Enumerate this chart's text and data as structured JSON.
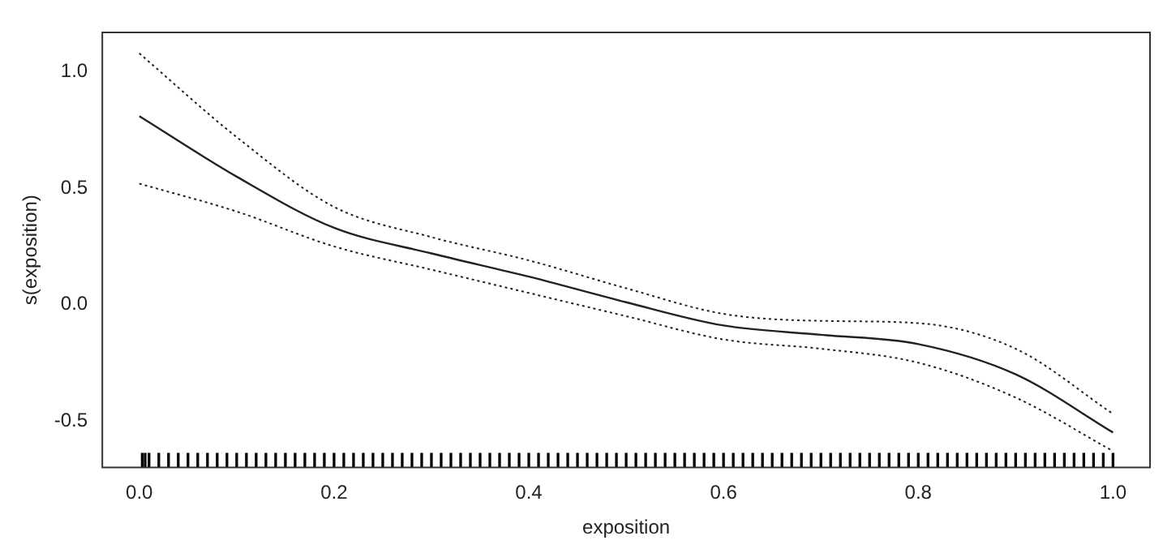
{
  "chart_data": {
    "type": "line",
    "xlabel": "exposition",
    "ylabel": "s(exposition)",
    "xlim": [
      -0.038,
      1.038
    ],
    "ylim": [
      -0.7,
      1.17
    ],
    "xticks": [
      {
        "value": 0,
        "label": "0.0"
      },
      0.2,
      0.4,
      0.6,
      0.8,
      {
        "value": 1,
        "label": "1.0"
      }
    ],
    "yticks": [
      -0.5,
      {
        "value": 0,
        "label": "0.0"
      },
      0.5,
      {
        "value": 1,
        "label": "1.0"
      }
    ],
    "grid": false,
    "legend": false,
    "marker": "none",
    "series": [
      {
        "color": "#222222",
        "line_style": "solid",
        "x": [
          0,
          0.1,
          0.2,
          0.3,
          0.4,
          0.5,
          0.6,
          0.7,
          0.8,
          0.9,
          1.0
        ],
        "values": [
          0.81,
          0.55,
          0.33,
          0.22,
          0.12,
          0.01,
          -0.09,
          -0.13,
          -0.17,
          -0.3,
          -0.55
        ]
      },
      {
        "color": "#222222",
        "line_style": "dotted",
        "x": [
          0,
          0.1,
          0.2,
          0.3,
          0.4,
          0.5,
          0.6,
          0.7,
          0.8,
          0.9,
          1.0
        ],
        "values": [
          0.52,
          0.4,
          0.25,
          0.15,
          0.05,
          -0.05,
          -0.15,
          -0.19,
          -0.25,
          -0.4,
          -0.63
        ]
      },
      {
        "color": "#222222",
        "line_style": "dotted",
        "x": [
          0,
          0.1,
          0.2,
          0.3,
          0.4,
          0.5,
          0.6,
          0.7,
          0.8,
          0.9,
          1.0
        ],
        "values": [
          1.08,
          0.72,
          0.42,
          0.29,
          0.19,
          0.07,
          -0.04,
          -0.07,
          -0.08,
          -0.19,
          -0.47
        ]
      },
      {
        "type": "bar",
        "color": "#000000",
        "x": [
          0.003,
          0.006,
          0.01,
          0.02,
          0.03,
          0.04,
          0.05,
          0.06,
          0.07,
          0.08,
          0.09,
          0.1,
          0.11,
          0.12,
          0.13,
          0.14,
          0.15,
          0.16,
          0.17,
          0.18,
          0.19,
          0.2,
          0.21,
          0.22,
          0.23,
          0.24,
          0.25,
          0.26,
          0.27,
          0.28,
          0.29,
          0.3,
          0.31,
          0.32,
          0.33,
          0.34,
          0.35,
          0.36,
          0.37,
          0.38,
          0.39,
          0.4,
          0.41,
          0.42,
          0.43,
          0.44,
          0.45,
          0.46,
          0.47,
          0.48,
          0.49,
          0.5,
          0.51,
          0.52,
          0.53,
          0.54,
          0.55,
          0.56,
          0.57,
          0.58,
          0.59,
          0.6,
          0.61,
          0.62,
          0.63,
          0.64,
          0.65,
          0.66,
          0.67,
          0.68,
          0.69,
          0.7,
          0.71,
          0.72,
          0.73,
          0.74,
          0.75,
          0.76,
          0.77,
          0.78,
          0.79,
          0.8,
          0.81,
          0.82,
          0.83,
          0.84,
          0.85,
          0.86,
          0.87,
          0.88,
          0.89,
          0.9,
          0.91,
          0.92,
          0.93,
          0.94,
          0.95,
          0.96,
          0.97,
          0.98,
          0.99,
          1.0
        ],
        "base": [
          -0.7,
          -0.7,
          -0.7,
          -0.7,
          -0.7,
          -0.7,
          -0.7,
          -0.7,
          -0.7,
          -0.7,
          -0.7,
          -0.7,
          -0.7,
          -0.7,
          -0.7,
          -0.7,
          -0.7,
          -0.7,
          -0.7,
          -0.7,
          -0.7,
          -0.7,
          -0.7,
          -0.7,
          -0.7,
          -0.7,
          -0.7,
          -0.7,
          -0.7,
          -0.7,
          -0.7,
          -0.7,
          -0.7,
          -0.7,
          -0.7,
          -0.7,
          -0.7,
          -0.7,
          -0.7,
          -0.7,
          -0.7,
          -0.7,
          -0.7,
          -0.7,
          -0.7,
          -0.7,
          -0.7,
          -0.7,
          -0.7,
          -0.7,
          -0.7,
          -0.7,
          -0.7,
          -0.7,
          -0.7,
          -0.7,
          -0.7,
          -0.7,
          -0.7,
          -0.7,
          -0.7,
          -0.7,
          -0.7,
          -0.7,
          -0.7,
          -0.7,
          -0.7,
          -0.7,
          -0.7,
          -0.7,
          -0.7,
          -0.7,
          -0.7,
          -0.7,
          -0.7,
          -0.7,
          -0.7,
          -0.7,
          -0.7,
          -0.7,
          -0.7,
          -0.7,
          -0.7,
          -0.7,
          -0.7,
          -0.7,
          -0.7,
          -0.7,
          -0.7,
          -0.7,
          -0.7,
          -0.7,
          -0.7,
          -0.7,
          -0.7,
          -0.7,
          -0.7,
          -0.7,
          -0.7,
          -0.7,
          -0.7,
          -0.7
        ],
        "values": [
          0.06,
          0.06,
          0.06,
          0.06,
          0.06,
          0.06,
          0.06,
          0.06,
          0.06,
          0.06,
          0.06,
          0.06,
          0.06,
          0.06,
          0.06,
          0.06,
          0.06,
          0.06,
          0.06,
          0.06,
          0.06,
          0.06,
          0.06,
          0.06,
          0.06,
          0.06,
          0.06,
          0.06,
          0.06,
          0.06,
          0.06,
          0.06,
          0.06,
          0.06,
          0.06,
          0.06,
          0.06,
          0.06,
          0.06,
          0.06,
          0.06,
          0.06,
          0.06,
          0.06,
          0.06,
          0.06,
          0.06,
          0.06,
          0.06,
          0.06,
          0.06,
          0.06,
          0.06,
          0.06,
          0.06,
          0.06,
          0.06,
          0.06,
          0.06,
          0.06,
          0.06,
          0.06,
          0.06,
          0.06,
          0.06,
          0.06,
          0.06,
          0.06,
          0.06,
          0.06,
          0.06,
          0.06,
          0.06,
          0.06,
          0.06,
          0.06,
          0.06,
          0.06,
          0.06,
          0.06,
          0.06,
          0.06,
          0.06,
          0.06,
          0.06,
          0.06,
          0.06,
          0.06,
          0.06,
          0.06,
          0.06,
          0.06,
          0.06,
          0.06,
          0.06,
          0.06,
          0.06,
          0.06,
          0.06,
          0.06,
          0.06,
          0.06
        ]
      }
    ]
  }
}
